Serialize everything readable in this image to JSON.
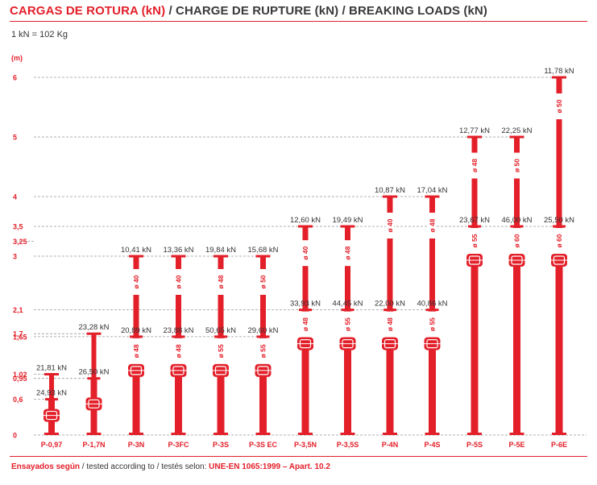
{
  "header": {
    "title_red": "CARGAS DE ROTURA (kN)",
    "title_rest": " / CHARGE DE RUPTURE (kN) / BREAKING LOADS (kN)",
    "conversion": "1 kN = 102 Kg"
  },
  "footer": {
    "prefix_red": "Ensayados según",
    "middle": " / tested according to / testés selon: ",
    "standard_red": "UNE-EN 1065:1999 – Apart. 10.2"
  },
  "chart_data": {
    "type": "bar",
    "ylabel": "(m)",
    "ylim": [
      0,
      6
    ],
    "y_ticks": [
      {
        "value": 0,
        "label": "0"
      },
      {
        "value": 0.6,
        "label": "0,6"
      },
      {
        "value": 0.95,
        "label": "0,95"
      },
      {
        "value": 1.02,
        "label": "1,02"
      },
      {
        "value": 1.65,
        "label": "1,65"
      },
      {
        "value": 1.7,
        "label": "1,7"
      },
      {
        "value": 2.1,
        "label": "2,1"
      },
      {
        "value": 3,
        "label": "3"
      },
      {
        "value": 3.25,
        "label": "3,25"
      },
      {
        "value": 3.5,
        "label": "3,5"
      },
      {
        "value": 4,
        "label": "4"
      },
      {
        "value": 5,
        "label": "5"
      },
      {
        "value": 6,
        "label": "6"
      }
    ],
    "colors": {
      "prop": "#e3202a",
      "grid": "#999999",
      "text": "#333333"
    },
    "props": [
      {
        "name": "P-0,97",
        "min_height": 0.6,
        "max_height": 1.02,
        "load_min": "24,93 kN",
        "load_max": "21,81 kN",
        "tube_label": ""
      },
      {
        "name": "P-1,7N",
        "min_height": 0.95,
        "max_height": 1.7,
        "load_min": "26,50 kN",
        "load_max": "23,28 kN",
        "tube_label": ""
      },
      {
        "name": "P-3N",
        "min_height": 1.65,
        "max_height": 3,
        "load_min": "20,89 kN",
        "load_max": "10,41 kN",
        "tube_label": "ø 40",
        "sleeve_label": "ø 48"
      },
      {
        "name": "P-3FC",
        "min_height": 1.65,
        "max_height": 3,
        "load_min": "23,88 kN",
        "load_max": "13,36 kN",
        "tube_label": "ø 40",
        "sleeve_label": "ø 48"
      },
      {
        "name": "P-3S",
        "min_height": 1.65,
        "max_height": 3,
        "load_min": "50,65 kN",
        "load_max": "19,84 kN",
        "tube_label": "ø 48",
        "sleeve_label": "ø 55"
      },
      {
        "name": "P-3S EC",
        "min_height": 1.65,
        "max_height": 3,
        "load_min": "29,60 kN",
        "load_max": "15,68 kN",
        "tube_label": "ø 50",
        "sleeve_label": "ø 55"
      },
      {
        "name": "P-3,5N",
        "min_height": 2.1,
        "max_height": 3.5,
        "load_min": "33,93 kN",
        "load_max": "12,60 kN",
        "tube_label": "ø 40",
        "sleeve_label": "ø 48"
      },
      {
        "name": "P-3,5S",
        "min_height": 2.1,
        "max_height": 3.5,
        "load_min": "44,45 kN",
        "load_max": "19,49 kN",
        "tube_label": "ø 48",
        "sleeve_label": "ø 55"
      },
      {
        "name": "P-4N",
        "min_height": 2.1,
        "max_height": 4,
        "load_min": "22,00 kN",
        "load_max": "10,87 kN",
        "tube_label": "ø 40",
        "sleeve_label": "ø 48"
      },
      {
        "name": "P-4S",
        "min_height": 2.1,
        "max_height": 4,
        "load_min": "40,86 kN",
        "load_max": "17,04 kN",
        "tube_label": "ø 48",
        "sleeve_label": "ø 55"
      },
      {
        "name": "P-5S",
        "min_height": 3.5,
        "max_height": 5,
        "load_min": "23,67 kN",
        "load_max": "12,77 kN",
        "tube_label": "ø 48",
        "sleeve_label": "ø 55"
      },
      {
        "name": "P-5E",
        "min_height": 3.5,
        "max_height": 5,
        "load_min": "46,00 kN",
        "load_max": "22,25 kN",
        "tube_label": "ø 50",
        "sleeve_label": "ø 60"
      },
      {
        "name": "P-6E",
        "min_height": 3.5,
        "max_height": 6,
        "load_min": "25,50 kN",
        "load_max": "11,78 kN",
        "tube_label": "ø 50",
        "sleeve_label": "ø 60"
      }
    ]
  }
}
